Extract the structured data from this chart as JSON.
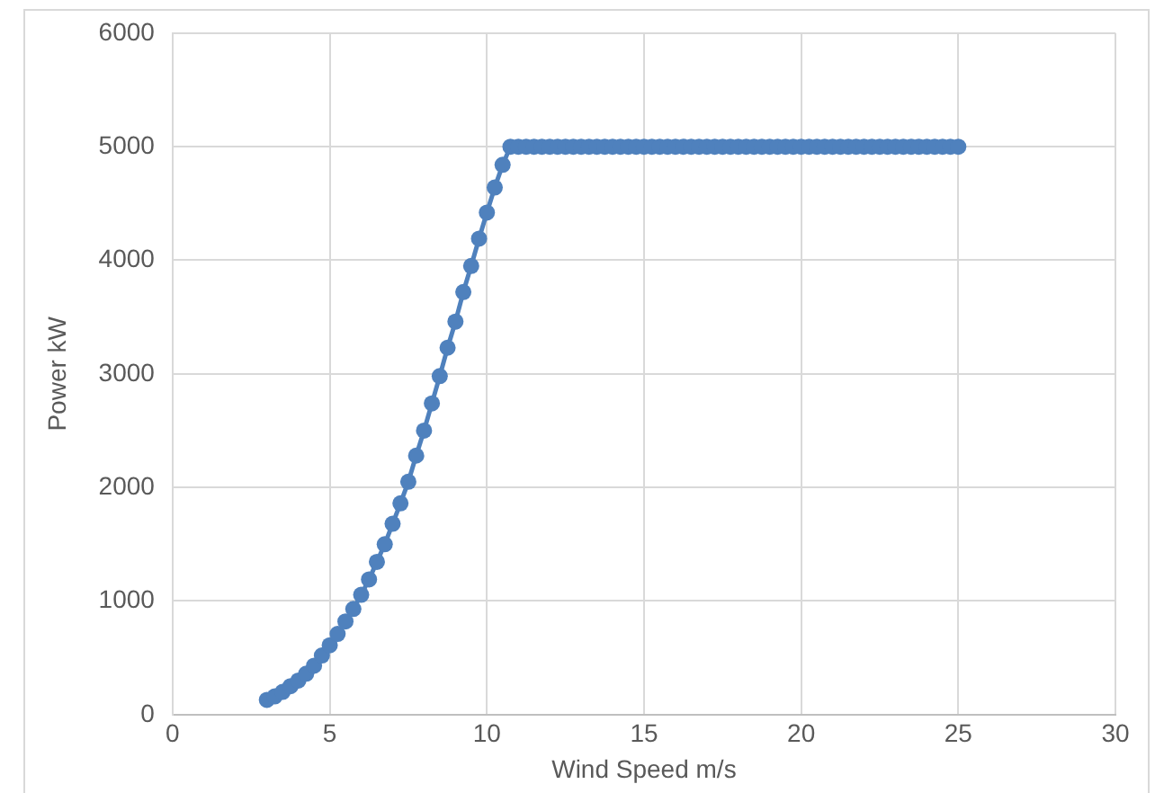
{
  "chart_data": {
    "type": "line",
    "xlabel": "Wind Speed m/s",
    "ylabel": "Power kW",
    "xlim": [
      0,
      30
    ],
    "xticks": [
      0,
      5,
      10,
      15,
      20,
      25,
      30
    ],
    "ylim": [
      0,
      6000
    ],
    "yticks": [
      0,
      1000,
      2000,
      3000,
      4000,
      5000,
      6000
    ],
    "grid": true,
    "legend": false,
    "marker": "circle",
    "line_style": "solid",
    "series": [
      {
        "color": "#4f81bd",
        "x": [
          3,
          3.25,
          3.5,
          3.75,
          4,
          4.25,
          4.5,
          4.75,
          5,
          5.25,
          5.5,
          5.75,
          6,
          6.25,
          6.5,
          6.75,
          7,
          7.25,
          7.5,
          7.75,
          8,
          8.25,
          8.5,
          8.75,
          9,
          9.25,
          9.5,
          9.75,
          10,
          10.25,
          10.5,
          10.75,
          11,
          11.25,
          11.5,
          11.75,
          12,
          12.25,
          12.5,
          12.75,
          13,
          13.25,
          13.5,
          13.75,
          14,
          14.25,
          14.5,
          14.75,
          15,
          15.25,
          15.5,
          15.75,
          16,
          16.25,
          16.5,
          16.75,
          17,
          17.25,
          17.5,
          17.75,
          18,
          18.25,
          18.5,
          18.75,
          19,
          19.25,
          19.5,
          19.75,
          20,
          20.25,
          20.5,
          20.75,
          21,
          21.25,
          21.5,
          21.75,
          22,
          22.25,
          22.5,
          22.75,
          23,
          23.25,
          23.5,
          23.75,
          24,
          24.25,
          24.5,
          24.75,
          25
        ],
        "values": [
          130,
          160,
          200,
          250,
          300,
          360,
          430,
          520,
          610,
          710,
          820,
          930,
          1055,
          1190,
          1345,
          1500,
          1680,
          1860,
          2050,
          2280,
          2500,
          2740,
          2980,
          3230,
          3460,
          3720,
          3950,
          4190,
          4420,
          4640,
          4840,
          5000,
          5000,
          5000,
          5000,
          5000,
          5000,
          5000,
          5000,
          5000,
          5000,
          5000,
          5000,
          5000,
          5000,
          5000,
          5000,
          5000,
          5000,
          5000,
          5000,
          5000,
          5000,
          5000,
          5000,
          5000,
          5000,
          5000,
          5000,
          5000,
          5000,
          5000,
          5000,
          5000,
          5000,
          5000,
          5000,
          5000,
          5000,
          5000,
          5000,
          5000,
          5000,
          5000,
          5000,
          5000,
          5000,
          5000,
          5000,
          5000,
          5000,
          5000,
          5000,
          5000,
          5000,
          5000,
          5000,
          5000,
          5000
        ]
      }
    ]
  }
}
